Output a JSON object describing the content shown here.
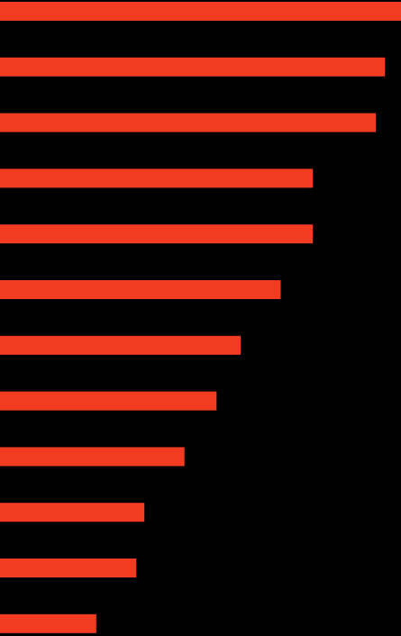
{
  "colors": {
    "background": "#000000",
    "bar": "#f23c22"
  },
  "chart_data": {
    "type": "bar",
    "orientation": "horizontal",
    "sort": "descending",
    "axes_visible": false,
    "grid": false,
    "legend": "none",
    "categories": [
      "",
      "",
      "",
      "",
      "",
      "",
      "",
      "",
      "",
      "",
      "",
      ""
    ],
    "values": [
      100,
      96,
      93.7,
      78,
      78,
      70,
      60,
      54,
      46,
      36,
      34,
      24
    ],
    "xlim": [
      0,
      100
    ]
  }
}
